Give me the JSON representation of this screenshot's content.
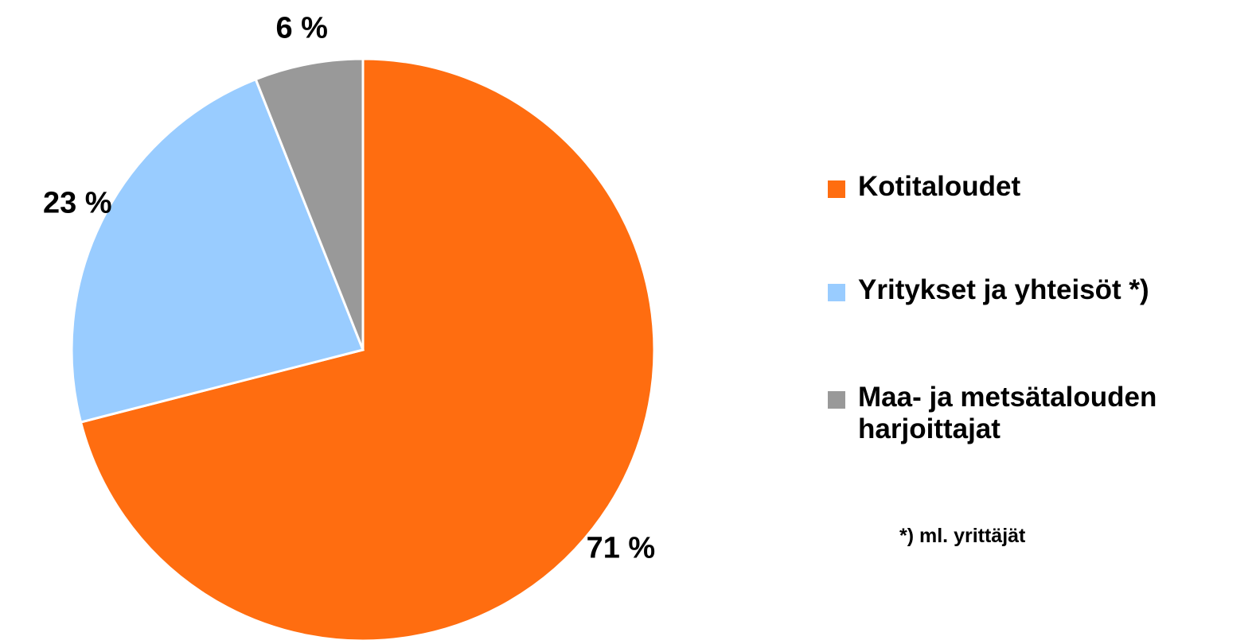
{
  "chart_data": {
    "type": "pie",
    "categories": [
      "Kotitaloudet",
      "Yritykset ja yhteisöt *)",
      "Maa- ja metsätalouden harjoittajat"
    ],
    "values": [
      71,
      23,
      6
    ],
    "value_labels": [
      "71 %",
      "23 %",
      "6 %"
    ],
    "colors": [
      "#ff6d10",
      "#99ccff",
      "#999999"
    ],
    "annotation": "*) ml. yrittäjät"
  }
}
